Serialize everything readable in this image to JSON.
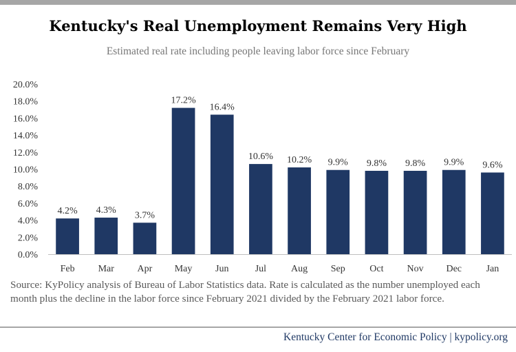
{
  "title": "Kentucky's Real Unemployment Remains Very High",
  "subtitle": "Estimated real rate including people leaving labor force since February",
  "source": "Source: KyPolicy analysis of Bureau of Labor Statistics data. Rate is calculated as the number unemployed each month plus the decline in the labor force since February 2021 divided by the February 2021 labor force.",
  "footer": "Kentucky Center for Economic Policy | kypolicy.org",
  "colors": {
    "bar": "#1f3864",
    "rule": "#a6a6a6"
  },
  "chart_data": {
    "type": "bar",
    "title": "Kentucky's Real Unemployment Remains Very High",
    "subtitle": "Estimated real rate including people leaving labor force since February",
    "categories": [
      "Feb",
      "Mar",
      "Apr",
      "May",
      "Jun",
      "Jul",
      "Aug",
      "Sep",
      "Oct",
      "Nov",
      "Dec",
      "Jan"
    ],
    "values": [
      4.2,
      4.3,
      3.7,
      17.2,
      16.4,
      10.6,
      10.2,
      9.9,
      9.8,
      9.8,
      9.9,
      9.6
    ],
    "data_labels": [
      "4.2%",
      "4.3%",
      "3.7%",
      "17.2%",
      "16.4%",
      "10.6%",
      "10.2%",
      "9.9%",
      "9.8%",
      "9.8%",
      "9.9%",
      "9.6%"
    ],
    "yticks": [
      "0.0%",
      "2.0%",
      "4.0%",
      "6.0%",
      "8.0%",
      "10.0%",
      "12.0%",
      "14.0%",
      "16.0%",
      "18.0%",
      "20.0%"
    ],
    "ylim": [
      0,
      20
    ],
    "xlabel": "",
    "ylabel": "",
    "grid": false,
    "legend": "none"
  }
}
